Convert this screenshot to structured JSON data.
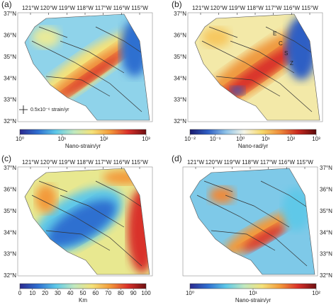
{
  "panels": [
    {
      "label": "(a)",
      "lon_ticks": [
        "121°W",
        "120°W",
        "119°W",
        "118°W",
        "117°W",
        "116°W",
        "115°W"
      ],
      "lat_ticks": [
        "37°N",
        "36°N",
        "35°N",
        "34°N",
        "33°N",
        "32°N"
      ],
      "colorbar": {
        "ticks": [
          "10⁰",
          "10¹",
          "10²",
          "10³"
        ],
        "label": "Nano-strain/yr"
      },
      "annotations": [
        "0.5x10⁻⁶ strain/yr"
      ]
    },
    {
      "label": "(b)",
      "lon_ticks": [
        "121°W",
        "120°W",
        "119°W",
        "118°W",
        "117°W",
        "116°W",
        "115°W"
      ],
      "lat_ticks": [
        "37°N",
        "36°N",
        "35°N",
        "34°N",
        "33°N",
        "32°N"
      ],
      "colorbar": {
        "ticks": [
          "10⁻²",
          "10⁻¹",
          "10⁰",
          "10¹",
          "10²",
          "10³"
        ],
        "label": "Nano-rad/yr"
      },
      "annotations": [
        "E",
        "C",
        "S",
        "Z"
      ]
    },
    {
      "label": "(c)",
      "lon_ticks": [
        "121°W",
        "120°W",
        "119°W",
        "118°W",
        "117°W",
        "116°W",
        "115°W"
      ],
      "lat_ticks": [
        "37°N",
        "36°N",
        "35°N",
        "34°N",
        "33°N",
        "32°N"
      ],
      "colorbar": {
        "ticks": [
          0,
          10,
          20,
          30,
          40,
          50,
          60,
          70,
          80,
          90,
          100
        ],
        "label": "Km"
      },
      "annotations": []
    },
    {
      "label": "(d)",
      "lon_ticks": [
        "121°W",
        "120°W",
        "119°W",
        "118°W",
        "117°W",
        "116°W",
        "115°W"
      ],
      "lat_ticks": [
        "37°N",
        "36°N",
        "35°N",
        "34°N",
        "33°N",
        "32°N"
      ],
      "colorbar": {
        "ticks": [
          "10⁰",
          "10¹",
          "10²"
        ],
        "label": "Nano-strain/yr"
      },
      "annotations": []
    }
  ]
}
